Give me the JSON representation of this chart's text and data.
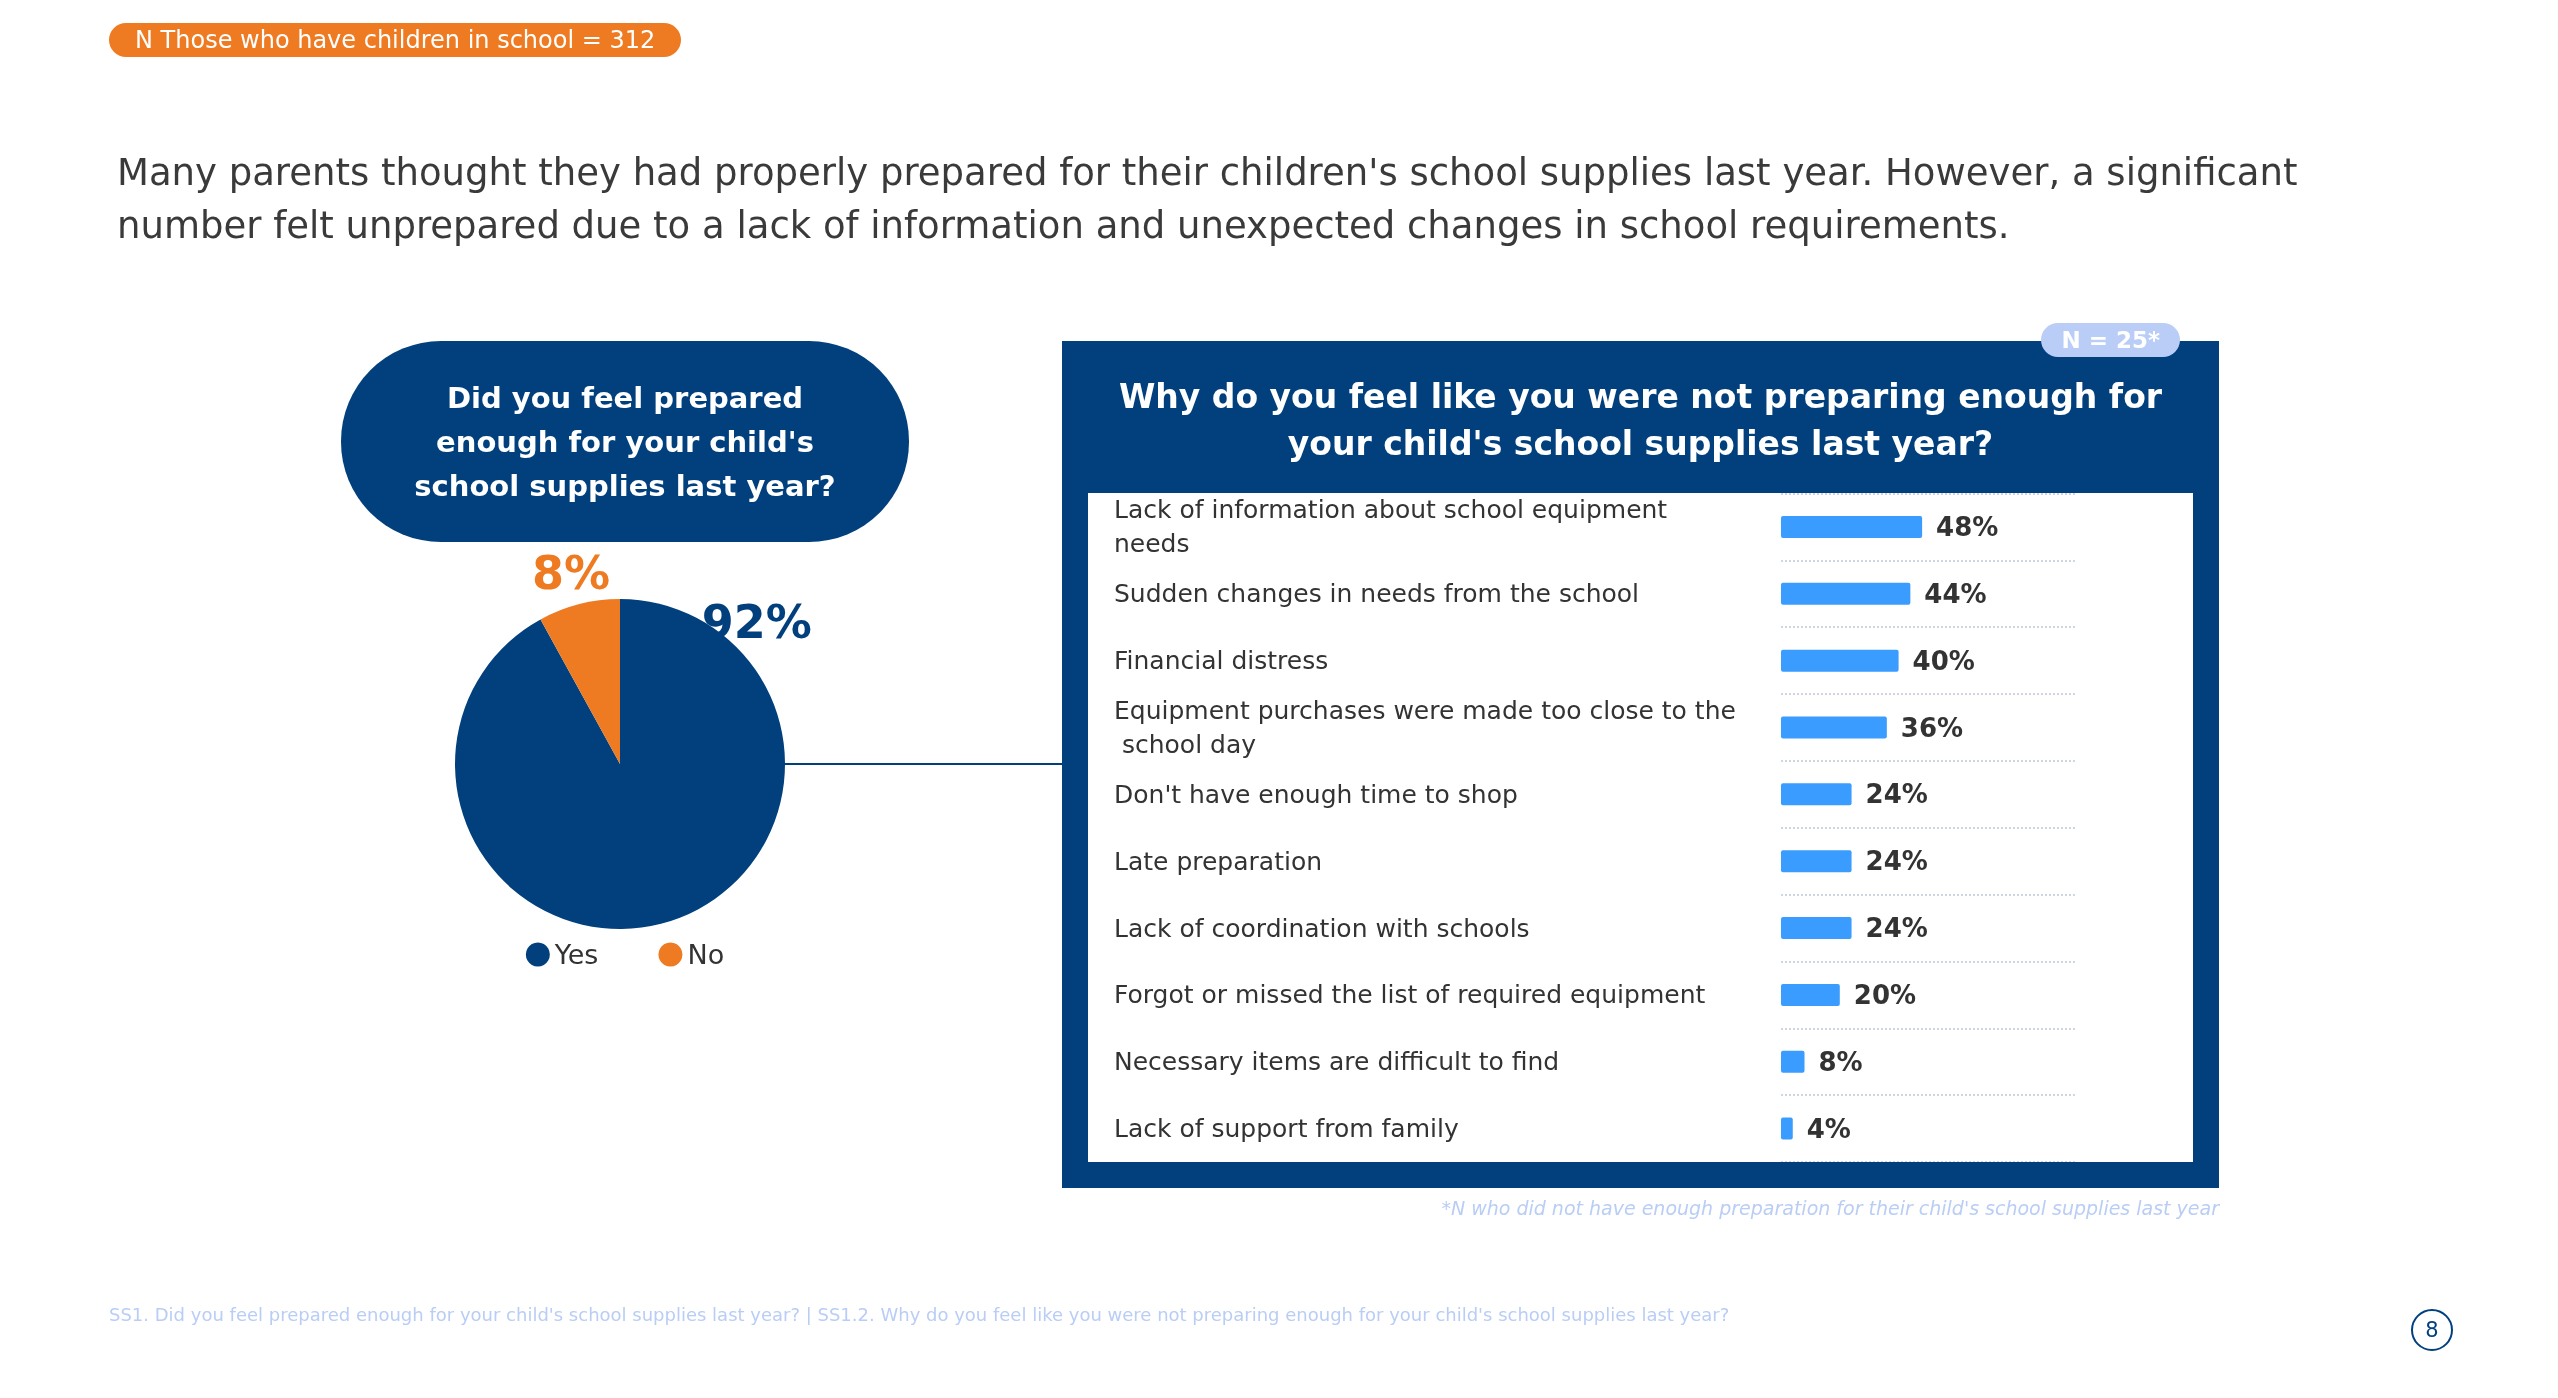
{
  "chart_data": [
    {
      "type": "other",
      "title": "Many parents thought they had properly prepared for their children's school supplies last year. However, a significant number felt unprepared due to a lack of information and unexpected changes in school requirements.",
      "annotations": [
        "N Those who have children in school = 312",
        "SS1. Did you feel prepared enough for your child's school supplies last year? | SS1.2. Why do you feel like you were not preparing enough for your child's school supplies last year?",
        "8"
      ]
    },
    {
      "type": "pie",
      "title": "Did you feel prepared enough for your child's school supplies last year?",
      "categories": [
        "Yes",
        "No"
      ],
      "values": [
        92,
        8
      ],
      "colors": [
        "#02407d",
        "#ee7b22"
      ],
      "value_labels": [
        "92%",
        "8%"
      ],
      "legend": "bottom"
    },
    {
      "type": "bar",
      "orientation": "horizontal",
      "title": "Why do you feel like you were not preparing enough for your child's school supplies last year?",
      "categories": [
        "Lack of information about school equipment needs",
        "Sudden changes in needs from the school",
        "Financial distress",
        "Equipment purchases were made too close to the school day",
        "Don't have enough time to shop",
        "Late preparation",
        "Lack of coordination with schools",
        "Forgot or missed the list of required equipment",
        "Necessary items are difficult to find",
        "Lack of support from family"
      ],
      "values": [
        48,
        44,
        40,
        36,
        24,
        24,
        24,
        20,
        8,
        4
      ],
      "color": "#3b9cff",
      "value_labels": [
        "48%",
        "44%",
        "40%",
        "36%",
        "24%",
        "24%",
        "24%",
        "20%",
        "8%",
        "4%"
      ],
      "xlim": [
        0,
        100
      ],
      "tick_labels": "y",
      "grid": "y",
      "annotations": [
        "N = 25*",
        "*N who did not have enough preparation for their child's school supplies last year"
      ]
    }
  ]
}
